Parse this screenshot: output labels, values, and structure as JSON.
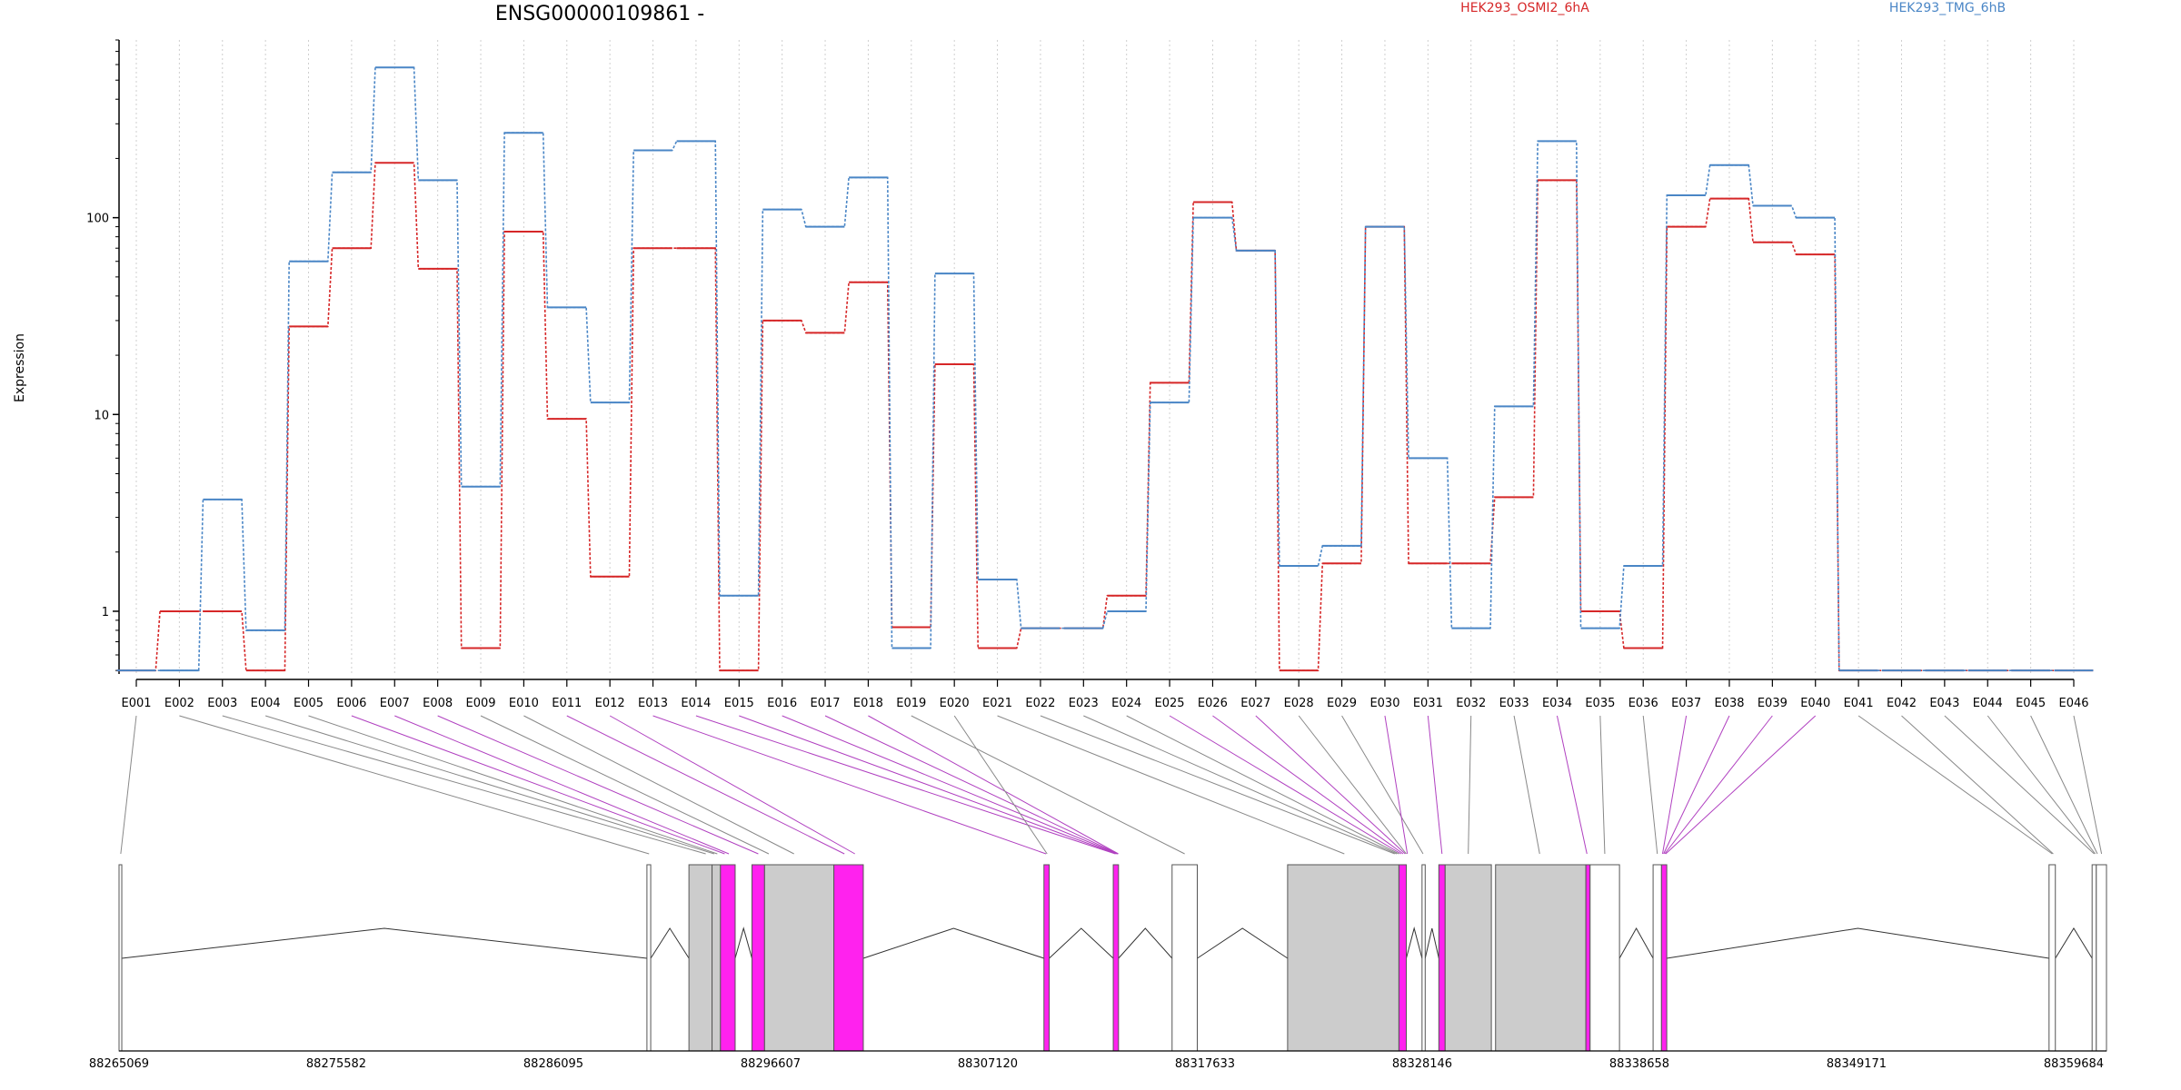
{
  "chart_data": {
    "type": "line",
    "title": "ENSG00000109861 -",
    "xlabel": "",
    "ylabel": "Expression",
    "y_scale": "log",
    "y_ticks": [
      1,
      10,
      100
    ],
    "y_tick_labels": [
      "1",
      "10",
      "100"
    ],
    "ylim": [
      0.48,
      800
    ],
    "grid": "vertical dotted lines at each exon",
    "legend": "top",
    "categories": [
      "E001",
      "E002",
      "E003",
      "E004",
      "E005",
      "E006",
      "E007",
      "E008",
      "E009",
      "E010",
      "E011",
      "E012",
      "E013",
      "E014",
      "E015",
      "E016",
      "E017",
      "E018",
      "E019",
      "E020",
      "E021",
      "E022",
      "E023",
      "E024",
      "E025",
      "E026",
      "E027",
      "E028",
      "E029",
      "E030",
      "E031",
      "E032",
      "E033",
      "E034",
      "E035",
      "E036",
      "E037",
      "E038",
      "E039",
      "E040",
      "E041",
      "E042",
      "E043",
      "E044",
      "E045",
      "E046"
    ],
    "series": [
      {
        "name": "HEK293_OSMI2_6hA",
        "color": "#d62728",
        "values": [
          0.5,
          1.0,
          1.0,
          0.5,
          28,
          70,
          190,
          55,
          0.65,
          85,
          9.5,
          1.5,
          70,
          70,
          0.5,
          30,
          26,
          47,
          0.83,
          18,
          0.65,
          0.82,
          0.82,
          1.2,
          14.5,
          120,
          68,
          0.5,
          1.75,
          90,
          1.75,
          1.75,
          3.8,
          155,
          1.0,
          0.65,
          90,
          125,
          75,
          65,
          0.5,
          0.5,
          0.5,
          0.5,
          0.5,
          0.5
        ]
      },
      {
        "name": "HEK293_TMG_6hB",
        "color": "#4a86c6",
        "values": [
          0.5,
          0.5,
          3.7,
          0.8,
          60,
          170,
          580,
          155,
          4.3,
          270,
          35,
          11.5,
          220,
          245,
          1.2,
          110,
          90,
          160,
          0.65,
          52,
          1.45,
          0.82,
          0.82,
          1.0,
          11.5,
          100,
          68,
          1.7,
          2.15,
          90,
          6,
          0.82,
          11,
          245,
          0.82,
          1.7,
          130,
          185,
          115,
          100,
          0.5,
          0.5,
          0.5,
          0.5,
          0.5,
          0.5
        ]
      }
    ],
    "gene_model": {
      "coordinate_ticks": [
        "88265069",
        "88275582",
        "88286095",
        "88296607",
        "88307120",
        "88317633",
        "88328146",
        "88338658",
        "88349171",
        "88359684"
      ],
      "coordinate_range": [
        88265069,
        88359684
      ],
      "exon_fill_colors": {
        "normal": "#cccccc",
        "highlighted": "#ff22ee",
        "outline": "#555555"
      },
      "exons": [
        {
          "start": 88265069,
          "end": 88265200,
          "fill": "white"
        },
        {
          "start": 88290200,
          "end": 88290380,
          "fill": "white"
        },
        {
          "start": 88292200,
          "end": 88293300,
          "fill": "grey"
        },
        {
          "start": 88293300,
          "end": 88293700,
          "fill": "grey"
        },
        {
          "start": 88293700,
          "end": 88294400,
          "fill": "magenta"
        },
        {
          "start": 88295200,
          "end": 88295800,
          "fill": "magenta"
        },
        {
          "start": 88295800,
          "end": 88299100,
          "fill": "grey"
        },
        {
          "start": 88299100,
          "end": 88300500,
          "fill": "magenta"
        },
        {
          "start": 88309100,
          "end": 88309350,
          "fill": "magenta"
        },
        {
          "start": 88312400,
          "end": 88312650,
          "fill": "magenta"
        },
        {
          "start": 88315200,
          "end": 88316400,
          "fill": "white"
        },
        {
          "start": 88320700,
          "end": 88326000,
          "fill": "grey"
        },
        {
          "start": 88326000,
          "end": 88326350,
          "fill": "magenta"
        },
        {
          "start": 88327100,
          "end": 88327250,
          "fill": "white"
        },
        {
          "start": 88327900,
          "end": 88328200,
          "fill": "magenta"
        },
        {
          "start": 88328200,
          "end": 88330400,
          "fill": "grey"
        },
        {
          "start": 88330600,
          "end": 88334900,
          "fill": "grey"
        },
        {
          "start": 88334900,
          "end": 88335100,
          "fill": "magenta"
        },
        {
          "start": 88335100,
          "end": 88336500,
          "fill": "white"
        },
        {
          "start": 88338100,
          "end": 88338500,
          "fill": "white"
        },
        {
          "start": 88338500,
          "end": 88338750,
          "fill": "magenta"
        },
        {
          "start": 88356950,
          "end": 88357250,
          "fill": "white"
        },
        {
          "start": 88359000,
          "end": 88359200,
          "fill": "white"
        },
        {
          "start": 88359200,
          "end": 88359684,
          "fill": "white"
        }
      ],
      "exon_links": [
        {
          "target": 88265150,
          "highlight": false
        },
        {
          "target": 88290300,
          "highlight": false
        },
        {
          "target": 88293000,
          "highlight": false
        },
        {
          "target": 88293400,
          "highlight": false
        },
        {
          "target": 88293550,
          "highlight": false
        },
        {
          "target": 88293900,
          "highlight": true
        },
        {
          "target": 88294100,
          "highlight": true
        },
        {
          "target": 88295500,
          "highlight": true
        },
        {
          "target": 88296000,
          "highlight": false
        },
        {
          "target": 88297200,
          "highlight": false
        },
        {
          "target": 88299600,
          "highlight": true
        },
        {
          "target": 88300100,
          "highlight": true
        },
        {
          "target": 88309200,
          "highlight": true
        },
        {
          "target": 88312500,
          "highlight": true
        },
        {
          "target": 88312550,
          "highlight": true
        },
        {
          "target": 88312600,
          "highlight": true
        },
        {
          "target": 88312620,
          "highlight": true
        },
        {
          "target": 88312640,
          "highlight": true
        },
        {
          "target": 88315800,
          "highlight": false
        },
        {
          "target": 88309250,
          "highlight": false
        },
        {
          "target": 88323400,
          "highlight": false
        },
        {
          "target": 88325800,
          "highlight": false
        },
        {
          "target": 88325900,
          "highlight": false
        },
        {
          "target": 88326000,
          "highlight": false
        },
        {
          "target": 88326100,
          "highlight": true
        },
        {
          "target": 88326200,
          "highlight": true
        },
        {
          "target": 88326300,
          "highlight": true
        },
        {
          "target": 88326350,
          "highlight": false
        },
        {
          "target": 88327150,
          "highlight": false
        },
        {
          "target": 88326400,
          "highlight": true
        },
        {
          "target": 88328050,
          "highlight": true
        },
        {
          "target": 88329300,
          "highlight": false
        },
        {
          "target": 88332700,
          "highlight": false
        },
        {
          "target": 88334950,
          "highlight": true
        },
        {
          "target": 88335800,
          "highlight": false
        },
        {
          "target": 88338300,
          "highlight": false
        },
        {
          "target": 88338550,
          "highlight": true
        },
        {
          "target": 88338600,
          "highlight": true
        },
        {
          "target": 88338650,
          "highlight": true
        },
        {
          "target": 88338700,
          "highlight": true
        },
        {
          "target": 88357100,
          "highlight": false
        },
        {
          "target": 88357150,
          "highlight": false
        },
        {
          "target": 88359100,
          "highlight": false
        },
        {
          "target": 88359150,
          "highlight": false
        },
        {
          "target": 88359250,
          "highlight": false
        },
        {
          "target": 88359450,
          "highlight": false
        }
      ]
    }
  }
}
